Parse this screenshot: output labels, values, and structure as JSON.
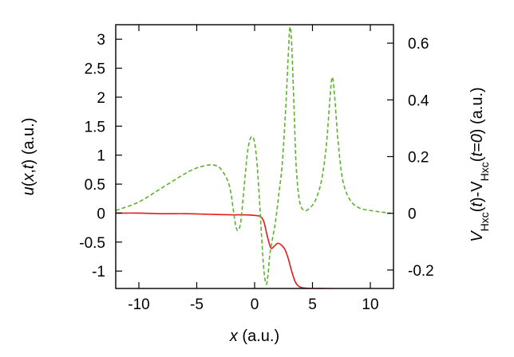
{
  "chart_data": {
    "type": "line",
    "x_axis": {
      "title_parts": [
        {
          "text": "x",
          "italic": true
        },
        {
          "text": " (a.u.)"
        }
      ],
      "range": [
        -12,
        12
      ],
      "ticks": [
        -10,
        -5,
        0,
        5,
        10
      ],
      "tick_labels": [
        "-10",
        "-5",
        "0",
        "5",
        "10"
      ]
    },
    "y_left_axis": {
      "title_parts": [
        {
          "text": "u",
          "italic": true
        },
        {
          "text": "("
        },
        {
          "text": "x",
          "italic": true
        },
        {
          "text": ","
        },
        {
          "text": "t",
          "italic": true
        },
        {
          "text": ") (a.u.)"
        }
      ],
      "range": [
        -1.3,
        3.25
      ],
      "ticks": [
        -1,
        -0.5,
        0,
        0.5,
        1,
        1.5,
        2,
        2.5,
        3
      ],
      "tick_labels": [
        "-1",
        "-0.5",
        "0",
        "0.5",
        "1",
        "1.5",
        "2",
        "2.5",
        "3"
      ]
    },
    "y_right_axis": {
      "title_parts": [
        {
          "text": "V",
          "italic": true
        },
        {
          "text": "Hxc",
          "sub": true
        },
        {
          "text": "("
        },
        {
          "text": "t",
          "italic": true
        },
        {
          "text": ")-V"
        },
        {
          "text": "Hxc",
          "sub": true
        },
        {
          "text": "("
        },
        {
          "text": "t=0",
          "italic": true
        },
        {
          "text": ") (a.u.)"
        }
      ],
      "range": [
        -0.265,
        0.665
      ],
      "ticks": [
        -0.2,
        0,
        0.2,
        0.4,
        0.6
      ],
      "tick_labels": [
        "-0.2",
        "0",
        "0.2",
        "0.4",
        "0.6"
      ]
    },
    "series": [
      {
        "axis": "left",
        "style": "solid",
        "color": "#e41a1c",
        "x": [
          -12,
          -10,
          -8,
          -6,
          -4,
          -2,
          -1,
          0,
          0.5,
          0.8,
          1.1,
          1.4,
          1.7,
          2.0,
          2.3,
          2.6,
          2.9,
          3.2,
          3.5,
          3.8,
          4.2,
          5,
          6,
          8,
          10,
          11.8
        ],
        "y": [
          0,
          0,
          -0.01,
          -0.01,
          -0.02,
          -0.03,
          -0.03,
          -0.04,
          -0.06,
          -0.15,
          -0.4,
          -0.6,
          -0.57,
          -0.52,
          -0.55,
          -0.62,
          -0.78,
          -1.0,
          -1.18,
          -1.26,
          -1.29,
          -1.3,
          -1.3,
          -1.31,
          -1.32,
          -1.32
        ]
      },
      {
        "axis": "right",
        "style": "dashed",
        "color": "#5fb22f",
        "x": [
          -12,
          -10,
          -8,
          -6,
          -5,
          -4,
          -3.5,
          -3,
          -2.5,
          -2.2,
          -2.0,
          -1.8,
          -1.6,
          -1.4,
          -1.2,
          -1.0,
          -0.8,
          -0.6,
          -0.4,
          -0.2,
          0,
          0.2,
          0.4,
          0.6,
          0.8,
          1.0,
          1.15,
          1.3,
          1.5,
          1.8,
          2.1,
          2.4,
          2.7,
          2.9,
          3.05,
          3.2,
          3.4,
          3.6,
          3.9,
          4.3,
          4.8,
          5.3,
          5.8,
          6.2,
          6.5,
          6.7,
          6.9,
          7.2,
          7.6,
          8.2,
          9,
          10,
          11.8
        ],
        "y": [
          0.01,
          0.04,
          0.09,
          0.14,
          0.16,
          0.17,
          0.17,
          0.16,
          0.13,
          0.1,
          0.06,
          0.0,
          -0.05,
          -0.06,
          -0.03,
          0.05,
          0.14,
          0.22,
          0.26,
          0.27,
          0.25,
          0.18,
          0.06,
          -0.08,
          -0.2,
          -0.25,
          -0.22,
          -0.15,
          -0.1,
          -0.03,
          0.07,
          0.18,
          0.38,
          0.55,
          0.655,
          0.6,
          0.38,
          0.16,
          0.04,
          0.01,
          0.02,
          0.05,
          0.12,
          0.24,
          0.4,
          0.48,
          0.42,
          0.26,
          0.12,
          0.05,
          0.02,
          0.01,
          0.0
        ]
      }
    ]
  }
}
